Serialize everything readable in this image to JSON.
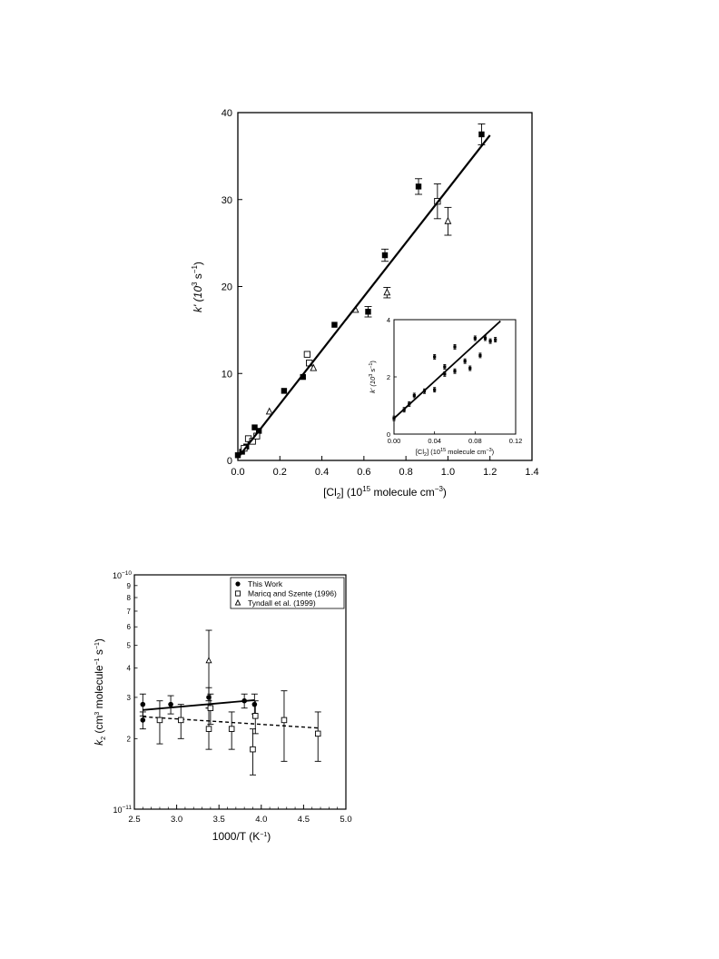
{
  "chart_data": [
    {
      "type": "scatter",
      "xlabel_main": "[Cl",
      "xlabel_sub": "2",
      "xlabel_rest": "] (10",
      "xlabel_sup": "15",
      "xlabel_end": " molecule cm",
      "xlabel_sup2": "−3",
      "xlabel_close": ")",
      "ylabel_main": "k' (10",
      "ylabel_sup": "3",
      "ylabel_rest": " s",
      "ylabel_sup2": "−1",
      "ylabel_close": ")",
      "xlim": [
        0,
        1.4
      ],
      "ylim": [
        0,
        40
      ],
      "xticks": [
        "0.0",
        "0.2",
        "0.4",
        "0.6",
        "0.8",
        "1.0",
        "1.2",
        "1.4"
      ],
      "yticks": [
        "0",
        "10",
        "20",
        "30",
        "40"
      ],
      "grid": false,
      "series": [
        {
          "marker": "filled-square",
          "points": [
            {
              "x": 0.0,
              "y": 0.6
            },
            {
              "x": 0.02,
              "y": 1.0
            },
            {
              "x": 0.04,
              "y": 1.6
            },
            {
              "x": 0.06,
              "y": 2.2
            },
            {
              "x": 0.08,
              "y": 3.8
            },
            {
              "x": 0.1,
              "y": 3.4
            },
            {
              "x": 0.22,
              "y": 8.0
            },
            {
              "x": 0.31,
              "y": 9.6
            },
            {
              "x": 0.46,
              "y": 15.6
            },
            {
              "x": 0.62,
              "y": 17.1,
              "err": 0.6
            },
            {
              "x": 0.7,
              "y": 23.6,
              "err": 0.7
            },
            {
              "x": 0.86,
              "y": 31.5,
              "err": 0.9
            },
            {
              "x": 1.16,
              "y": 37.5,
              "err": 1.2
            }
          ]
        },
        {
          "marker": "open-square",
          "points": [
            {
              "x": 0.03,
              "y": 1.4
            },
            {
              "x": 0.05,
              "y": 2.5
            },
            {
              "x": 0.07,
              "y": 2.2
            },
            {
              "x": 0.09,
              "y": 2.8
            },
            {
              "x": 0.33,
              "y": 12.2
            },
            {
              "x": 0.34,
              "y": 11.2
            },
            {
              "x": 0.95,
              "y": 29.8,
              "err": 2.0
            }
          ]
        },
        {
          "marker": "open-triangle",
          "points": [
            {
              "x": 0.15,
              "y": 5.6
            },
            {
              "x": 0.36,
              "y": 10.6
            },
            {
              "x": 0.56,
              "y": 17.3
            },
            {
              "x": 0.71,
              "y": 19.3,
              "err": 0.6
            },
            {
              "x": 1.0,
              "y": 27.5,
              "err": 1.6
            }
          ]
        }
      ],
      "fit_line": {
        "x": [
          0.0,
          1.2
        ],
        "y": [
          0.3,
          37.4
        ]
      },
      "inset": {
        "type": "scatter",
        "xlabel_main": "[Cl",
        "xlabel_sub": "2",
        "xlabel_rest": "] (10",
        "xlabel_sup": "15",
        "xlabel_end": " molecule cm",
        "xlabel_sup2": "−3",
        "xlabel_close": ")",
        "ylabel_main": "k' (10",
        "ylabel_sup": "3",
        "ylabel_rest": " s",
        "ylabel_sup2": "−1",
        "ylabel_close": ")",
        "xlim": [
          0,
          0.12
        ],
        "ylim": [
          0,
          4
        ],
        "xticks": [
          "0.00",
          "0.04",
          "0.08",
          "0.12"
        ],
        "yticks": [
          "0",
          "2",
          "4"
        ],
        "points": [
          {
            "x": 0.0,
            "y": 0.55
          },
          {
            "x": 0.01,
            "y": 0.85
          },
          {
            "x": 0.015,
            "y": 1.05
          },
          {
            "x": 0.02,
            "y": 1.35
          },
          {
            "x": 0.03,
            "y": 1.5
          },
          {
            "x": 0.04,
            "y": 2.7
          },
          {
            "x": 0.04,
            "y": 1.55
          },
          {
            "x": 0.05,
            "y": 2.35
          },
          {
            "x": 0.05,
            "y": 2.1
          },
          {
            "x": 0.06,
            "y": 3.05
          },
          {
            "x": 0.06,
            "y": 2.2
          },
          {
            "x": 0.07,
            "y": 2.55
          },
          {
            "x": 0.075,
            "y": 2.3
          },
          {
            "x": 0.08,
            "y": 3.35
          },
          {
            "x": 0.085,
            "y": 2.75
          },
          {
            "x": 0.09,
            "y": 3.35
          },
          {
            "x": 0.095,
            "y": 3.25
          },
          {
            "x": 0.1,
            "y": 3.3
          }
        ],
        "fit_line": {
          "x": [
            0.0,
            0.105
          ],
          "y": [
            0.55,
            3.95
          ]
        }
      }
    },
    {
      "type": "scatter",
      "yscale": "log",
      "xlabel_main": "1000/T  (K",
      "xlabel_sup": "−1",
      "xlabel_close": ")",
      "ylabel_pre": "k",
      "ylabel_sub": "2",
      "ylabel_main": " (cm",
      "ylabel_sup": "3",
      "ylabel_mid": " molecule",
      "ylabel_sup2": "−1",
      "ylabel_end": " s",
      "ylabel_sup3": "−1",
      "ylabel_close": ")",
      "xlim": [
        2.5,
        5.0
      ],
      "ylim": [
        1e-11,
        1e-10
      ],
      "xticks": [
        "2.5",
        "3.0",
        "3.5",
        "4.0",
        "4.5",
        "5.0"
      ],
      "ytick_major": [
        {
          "base": "10",
          "exp": "−10"
        },
        {
          "base": "10",
          "exp": "−11"
        }
      ],
      "ytick_minor": [
        "9",
        "8",
        "7",
        "6",
        "5",
        "4",
        "3",
        "2"
      ],
      "legend_position": "top-right",
      "series": [
        {
          "name": "This Work",
          "marker": "filled-circle",
          "points": [
            {
              "x": 2.6,
              "y": 2.8e-11,
              "lo": 2.5e-11,
              "hi": 3.1e-11
            },
            {
              "x": 2.6,
              "y": 2.4e-11,
              "lo": 2.2e-11,
              "hi": 2.6e-11
            },
            {
              "x": 2.93,
              "y": 2.8e-11,
              "lo": 2.55e-11,
              "hi": 3.05e-11
            },
            {
              "x": 3.38,
              "y": 3e-11,
              "lo": 2.7e-11,
              "hi": 3.3e-11
            },
            {
              "x": 3.8,
              "y": 2.9e-11,
              "lo": 2.7e-11,
              "hi": 3.1e-11
            },
            {
              "x": 3.92,
              "y": 2.8e-11,
              "lo": 2.55e-11,
              "hi": 3.1e-11
            }
          ]
        },
        {
          "name": "Maricq and Szente (1996)",
          "marker": "open-square",
          "points": [
            {
              "x": 2.8,
              "y": 2.4e-11,
              "lo": 1.9e-11,
              "hi": 2.9e-11
            },
            {
              "x": 3.05,
              "y": 2.4e-11,
              "lo": 2e-11,
              "hi": 2.8e-11
            },
            {
              "x": 3.38,
              "y": 2.2e-11,
              "lo": 1.8e-11,
              "hi": 2.7e-11
            },
            {
              "x": 3.4,
              "y": 2.7e-11,
              "lo": 2.3e-11,
              "hi": 3.1e-11
            },
            {
              "x": 3.65,
              "y": 2.2e-11,
              "lo": 1.8e-11,
              "hi": 2.6e-11
            },
            {
              "x": 3.9,
              "y": 1.8e-11,
              "lo": 1.4e-11,
              "hi": 2.2e-11
            },
            {
              "x": 3.93,
              "y": 2.5e-11,
              "lo": 2.1e-11,
              "hi": 2.9e-11
            },
            {
              "x": 4.27,
              "y": 2.4e-11,
              "lo": 1.6e-11,
              "hi": 3.2e-11
            },
            {
              "x": 4.67,
              "y": 2.1e-11,
              "lo": 1.6e-11,
              "hi": 2.6e-11
            }
          ]
        },
        {
          "name": "Tyndall et al. (1999)",
          "marker": "open-triangle",
          "points": [
            {
              "x": 3.38,
              "y": 4.3e-11,
              "lo": 2.9e-11,
              "hi": 5.8e-11
            }
          ]
        }
      ],
      "fit_lines": [
        {
          "style": "solid",
          "x": [
            2.6,
            3.92
          ],
          "y": [
            2.65e-11,
            2.92e-11
          ]
        },
        {
          "style": "dashed",
          "x": [
            2.6,
            4.67
          ],
          "y": [
            2.48e-11,
            2.22e-11
          ]
        }
      ]
    }
  ]
}
